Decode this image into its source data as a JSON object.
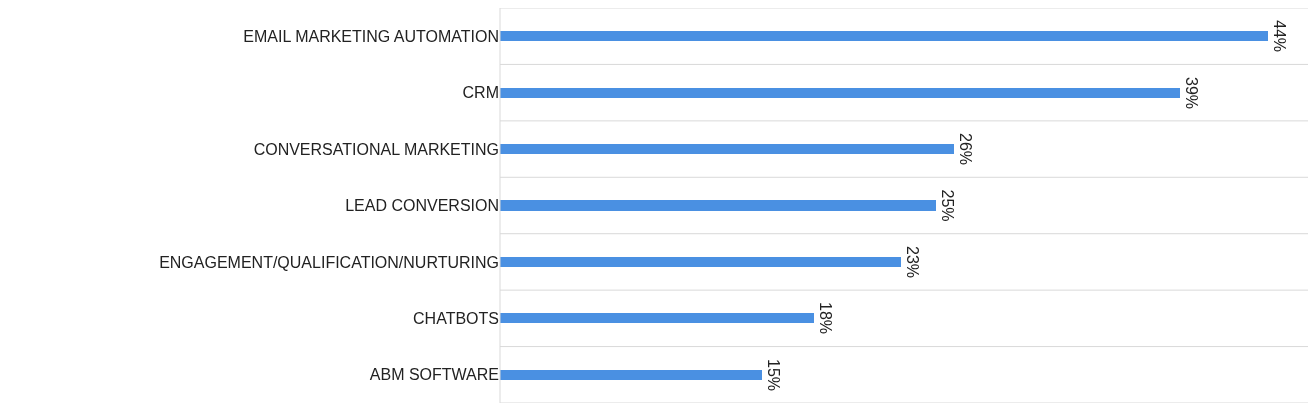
{
  "chart_data": {
    "type": "bar",
    "orientation": "horizontal",
    "categories": [
      "EMAIL MARKETING AUTOMATION",
      "CRM",
      "CONVERSATIONAL MARKETING",
      "LEAD CONVERSION",
      "ENGAGEMENT/QUALIFICATION/NURTURING",
      "CHATBOTS",
      "ABM SOFTWARE"
    ],
    "values": [
      44,
      39,
      26,
      25,
      23,
      18,
      15
    ],
    "value_labels": [
      "44%",
      "39%",
      "26%",
      "25%",
      "23%",
      "18%",
      "15%"
    ],
    "color": "#4a90e2",
    "grid": "y"
  }
}
